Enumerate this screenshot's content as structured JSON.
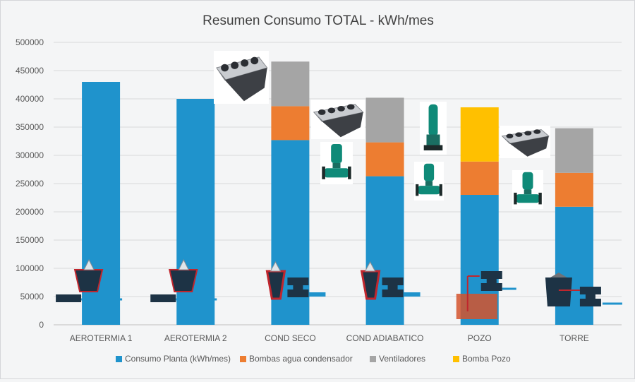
{
  "chart_data": {
    "type": "stacked-bar",
    "title": "Resumen Consumo TOTAL - kWh/mes",
    "xlabel": "",
    "ylabel": "",
    "ylim": [
      0,
      500000
    ],
    "yticks": [
      "0",
      "50000",
      "100000",
      "150000",
      "200000",
      "250000",
      "300000",
      "350000",
      "400000",
      "450000",
      "500000"
    ],
    "grid": true,
    "legend_position": "bottom",
    "categories": [
      "AEROTERMIA 1",
      "AEROTERMIA 2",
      "COND SECO",
      "COND ADIABATICO",
      "POZO",
      "TORRE"
    ],
    "series": [
      {
        "name": "Consumo Planta  (kWh/mes)",
        "color": "#1f93cc",
        "values": [
          430000,
          400000,
          327000,
          263000,
          230000,
          209000
        ]
      },
      {
        "name": "Bombas agua condensador",
        "color": "#ed7d31",
        "values": [
          0,
          0,
          60000,
          60000,
          59000,
          60000
        ]
      },
      {
        "name": "Ventiladores",
        "color": "#a5a5a5",
        "values": [
          0,
          0,
          79000,
          79000,
          0,
          79000
        ]
      },
      {
        "name": "Bomba Pozo",
        "color": "#ffc000",
        "values": [
          0,
          0,
          0,
          0,
          96000,
          0
        ]
      }
    ],
    "icons": [
      "dry-cooler-icon",
      "inline-pump-icon",
      "submersible-pump-icon",
      "cooling-system-schematic-icon"
    ]
  }
}
